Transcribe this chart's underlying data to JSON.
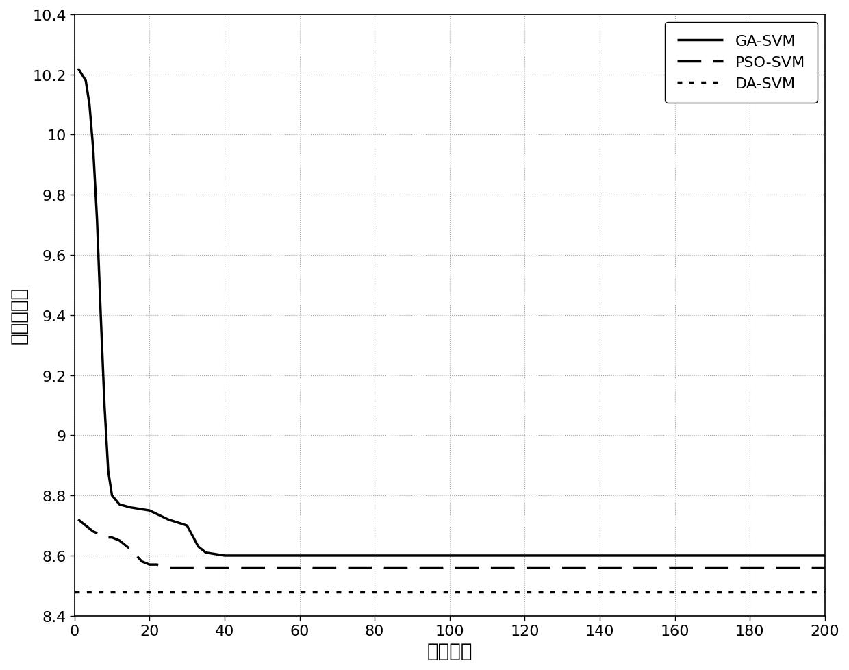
{
  "title": "",
  "xlabel": "迭代次数",
  "ylabel": "最佳适应度",
  "xlim": [
    0,
    200
  ],
  "ylim": [
    8.4,
    10.4
  ],
  "xticks": [
    0,
    20,
    40,
    60,
    80,
    100,
    120,
    140,
    160,
    180,
    200
  ],
  "yticks": [
    8.4,
    8.6,
    8.8,
    9.0,
    9.2,
    9.4,
    9.6,
    9.8,
    10.0,
    10.2,
    10.4
  ],
  "background_color": "#ffffff",
  "grid_color": "#aaaaaa",
  "line_color": "#000000",
  "ga_svm": {
    "label": "GA-SVM",
    "linestyle": "solid",
    "linewidth": 2.5,
    "color": "#000000",
    "x": [
      1,
      2,
      3,
      4,
      5,
      6,
      7,
      8,
      9,
      10,
      12,
      15,
      20,
      25,
      30,
      33,
      35,
      40,
      60,
      80,
      100,
      120,
      140,
      160,
      180,
      200
    ],
    "y": [
      10.22,
      10.2,
      10.18,
      10.1,
      9.95,
      9.72,
      9.4,
      9.1,
      8.88,
      8.8,
      8.77,
      8.76,
      8.75,
      8.72,
      8.7,
      8.63,
      8.61,
      8.6,
      8.6,
      8.6,
      8.6,
      8.6,
      8.6,
      8.6,
      8.6,
      8.6
    ]
  },
  "pso_svm": {
    "label": "PSO-SVM",
    "linestyle": "dashed",
    "linewidth": 2.5,
    "color": "#000000",
    "x": [
      1,
      3,
      5,
      7,
      9,
      10,
      12,
      15,
      18,
      20,
      22,
      25,
      28,
      30,
      35,
      40,
      60,
      80,
      100,
      120,
      140,
      160,
      180,
      200
    ],
    "y": [
      8.72,
      8.7,
      8.68,
      8.67,
      8.66,
      8.66,
      8.65,
      8.62,
      8.58,
      8.57,
      8.57,
      8.56,
      8.56,
      8.56,
      8.56,
      8.56,
      8.56,
      8.56,
      8.56,
      8.56,
      8.56,
      8.56,
      8.56,
      8.56
    ]
  },
  "da_svm": {
    "label": "DA-SVM",
    "linestyle": "dotted",
    "linewidth": 2.5,
    "color": "#000000",
    "x": [
      0,
      200
    ],
    "y": [
      8.48,
      8.48
    ]
  }
}
